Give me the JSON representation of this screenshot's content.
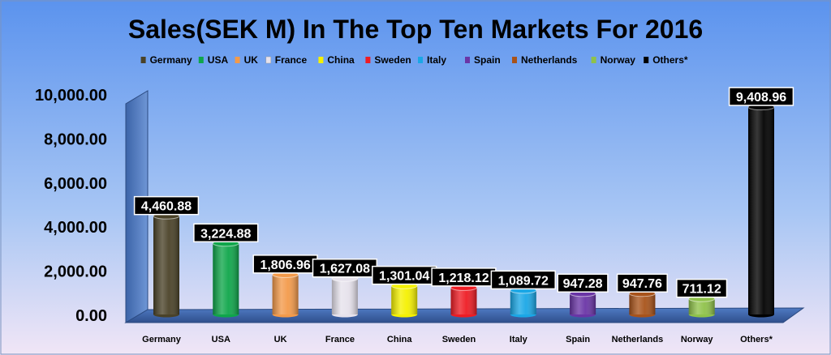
{
  "chart_data": {
    "type": "bar",
    "title": "Sales(SEK M) In The Top Ten Markets For 2016",
    "categories": [
      "Germany",
      "USA",
      "UK",
      "France",
      "China",
      "Sweden",
      "Italy",
      "Spain",
      "Netherlands",
      "Norway",
      "Others*"
    ],
    "values": [
      4460.88,
      3224.88,
      1806.96,
      1627.08,
      1301.04,
      1218.12,
      1089.72,
      947.28,
      947.76,
      711.12,
      9408.96
    ],
    "value_labels": [
      "4,460.88",
      "3,224.88",
      "1,806.96",
      "1,627.08",
      "1,301.04",
      "1,218.12",
      "1,089.72",
      "947.28",
      "947.76",
      "711.12",
      "9,408.96"
    ],
    "colors": [
      "#4a4228",
      "#0fa64a",
      "#f39a4a",
      "#e6e2ec",
      "#f5f100",
      "#ee1c24",
      "#1aa7e6",
      "#6a35a6",
      "#a8531a",
      "#8fc24a",
      "#000000"
    ],
    "y_ticks": [
      "0.00",
      "2,000.00",
      "4,000.00",
      "6,000.00",
      "8,000.00",
      "10,000.00"
    ],
    "y_tick_values": [
      0,
      2000,
      4000,
      6000,
      8000,
      10000
    ],
    "ylim": [
      0,
      10000
    ],
    "legend_position": "top",
    "grid": false
  }
}
